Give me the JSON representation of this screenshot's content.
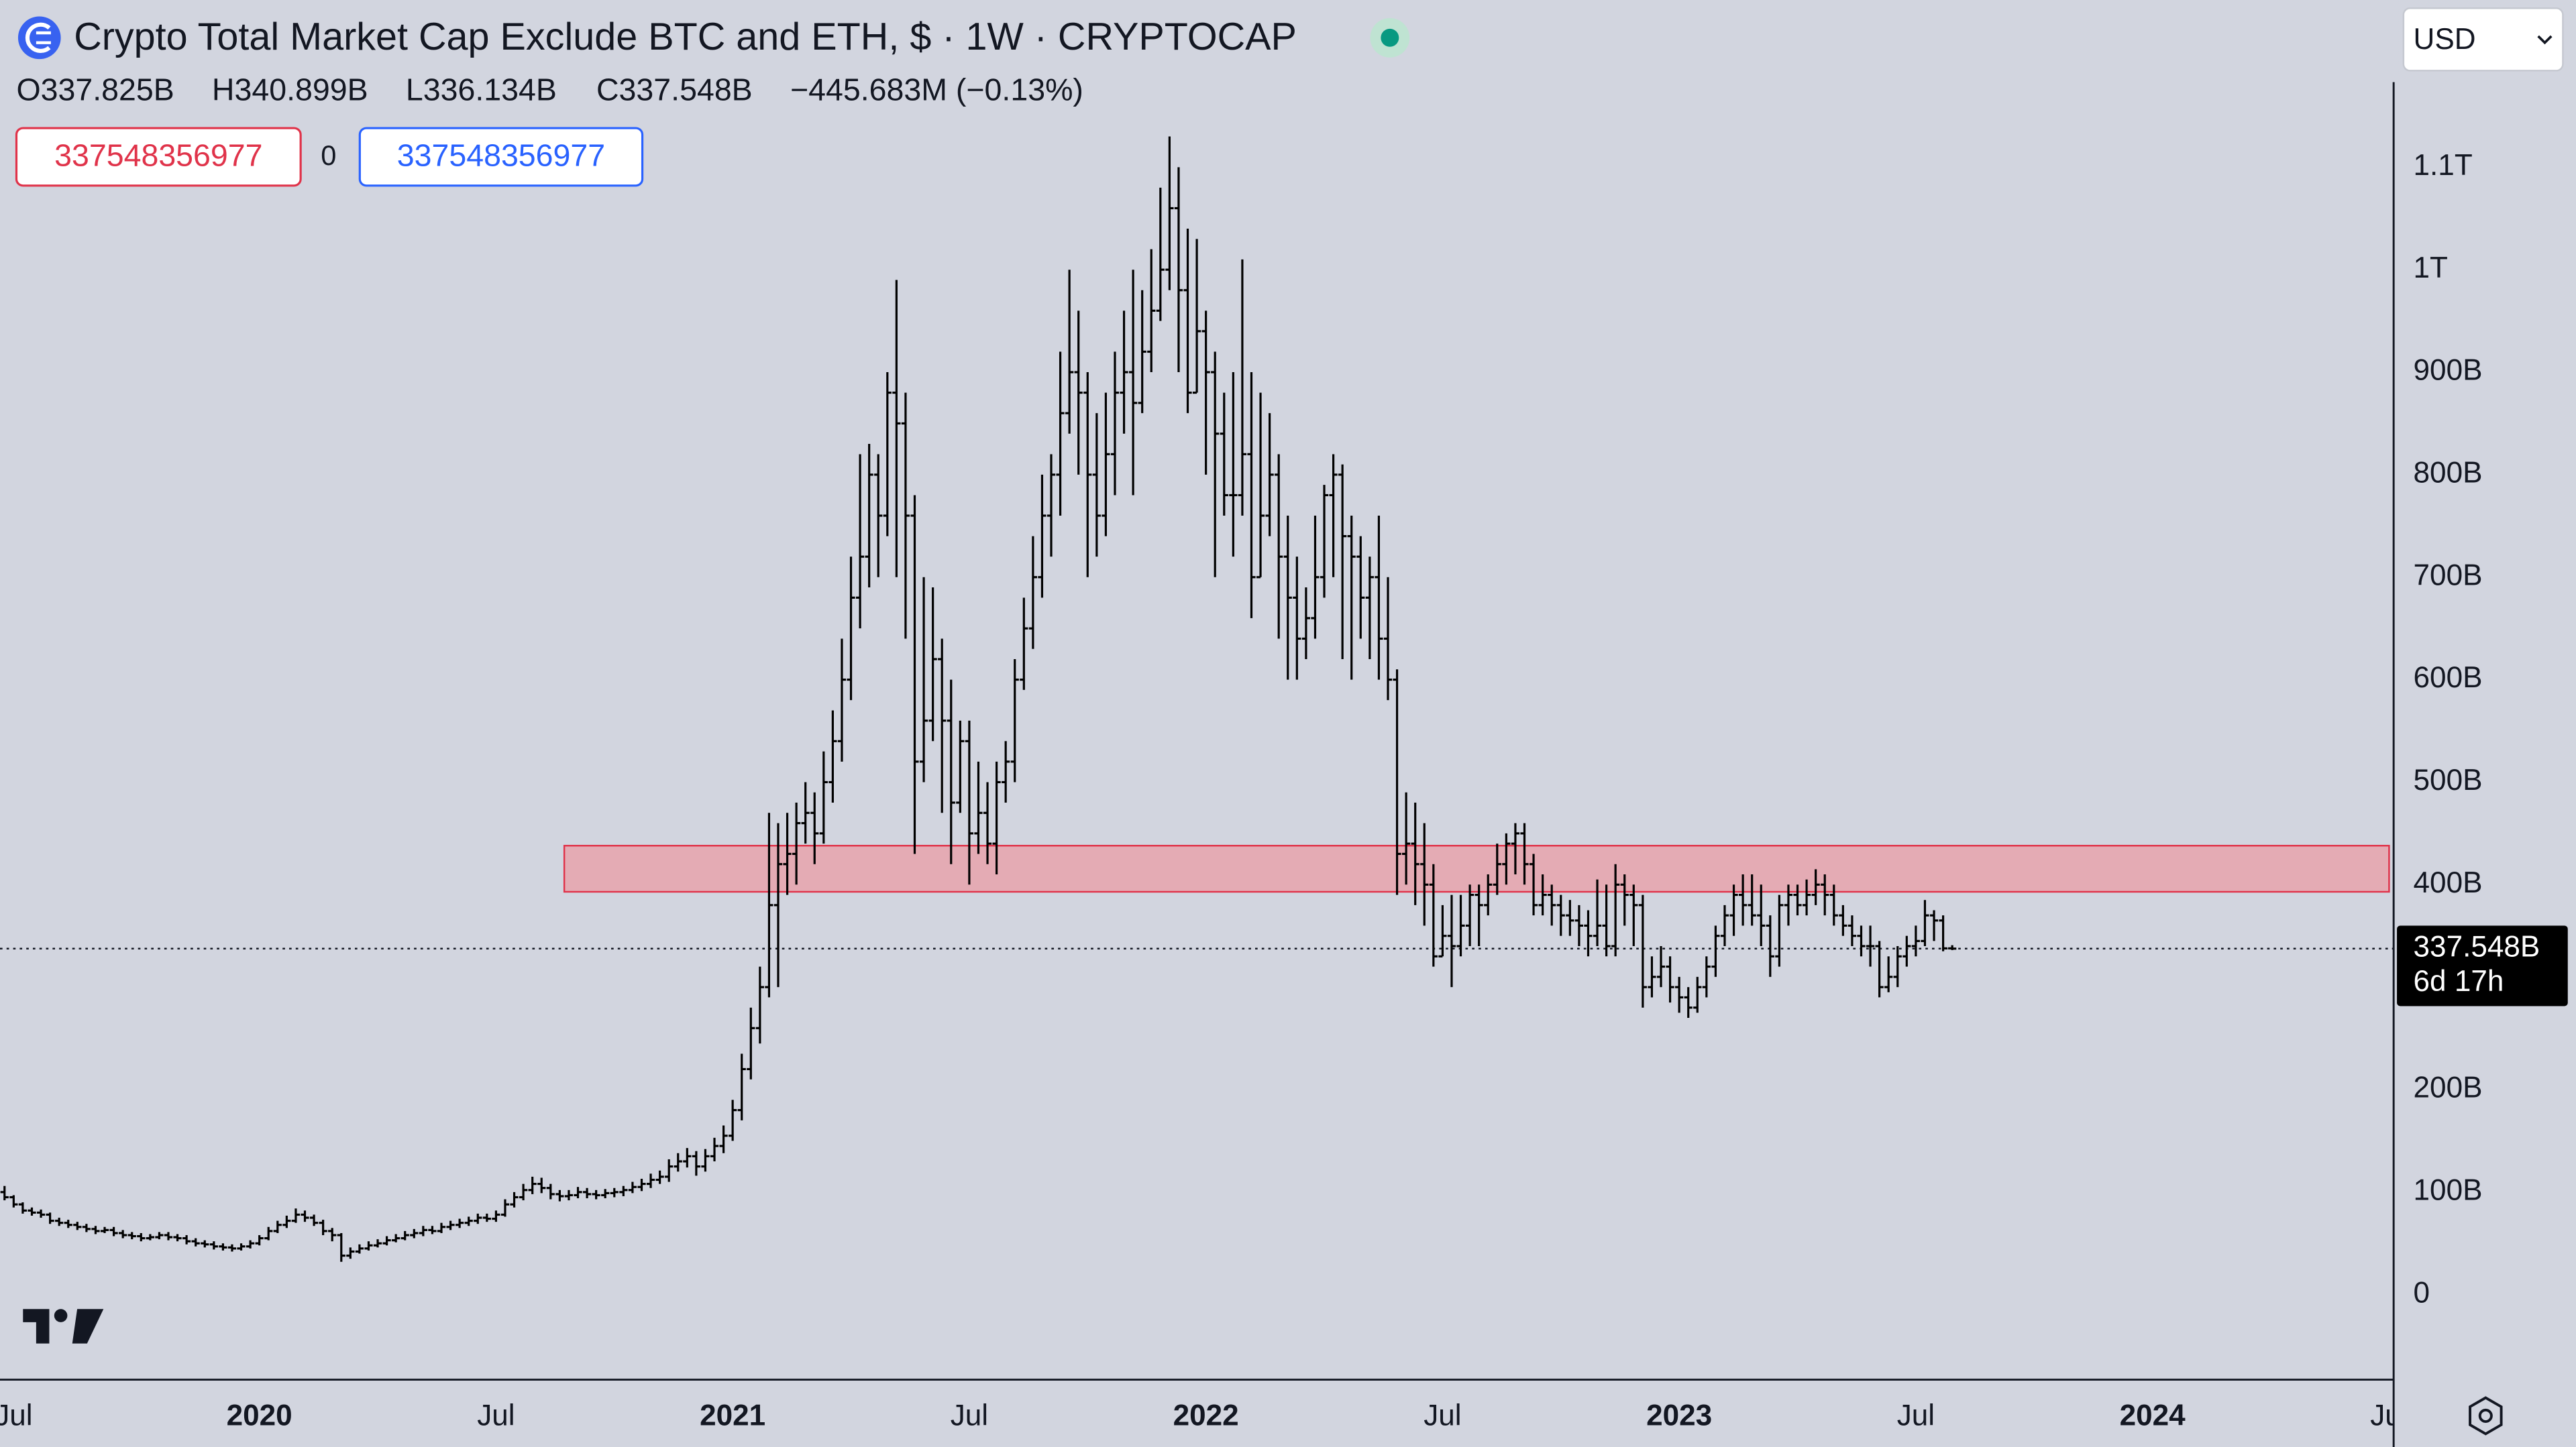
{
  "chart_data": {
    "type": "ohlc",
    "title": "Crypto Total Market Cap Exclude BTC and ETH, $ · 1W · CRYPTOCAP",
    "header": [
      "O337.825B",
      "H340.899B",
      "L336.134B",
      "C337.548B",
      "−445.683M (−0.13%)"
    ],
    "inputs": [
      "337548356977",
      "0",
      "337548356977"
    ],
    "currency": "USD",
    "color": "#000000",
    "grid": false,
    "categories": [
      null,
      null,
      null,
      null,
      null,
      null,
      null,
      null,
      null,
      null,
      null,
      null,
      null,
      null,
      null,
      null,
      null,
      null,
      null,
      null,
      null,
      null,
      null,
      null,
      null,
      null,
      null,
      null,
      null,
      null,
      null,
      null,
      null,
      null,
      null,
      null,
      null,
      null,
      null,
      null,
      null,
      null,
      null,
      null,
      null,
      null,
      null,
      null,
      null,
      null,
      null,
      null,
      null,
      null,
      null,
      null,
      null,
      null,
      null,
      null,
      null,
      null,
      null,
      null,
      null,
      null,
      null,
      null,
      null,
      null,
      null,
      null,
      null,
      null,
      null,
      null,
      null,
      null,
      null,
      null,
      null,
      null,
      null,
      null,
      null,
      null,
      null,
      null,
      null,
      null,
      null,
      null,
      null,
      null,
      null,
      null,
      null,
      null,
      null,
      null,
      null,
      null,
      null,
      null,
      null,
      null,
      null,
      null,
      null,
      null,
      null,
      null,
      null,
      null,
      null,
      null,
      null,
      null,
      null,
      null,
      null,
      null,
      null,
      null,
      null,
      null,
      null,
      null,
      null,
      null,
      null,
      null,
      null,
      null,
      null,
      null,
      null,
      null,
      null,
      null,
      null,
      null,
      null,
      null,
      null,
      null,
      null,
      null,
      null,
      null,
      null,
      null,
      null,
      null,
      null,
      null,
      null,
      null,
      null,
      null,
      null,
      null,
      null,
      null,
      null,
      null,
      null,
      null,
      null,
      null,
      null,
      null,
      null,
      null,
      null,
      null,
      null,
      null,
      null,
      null,
      null,
      null,
      null,
      null,
      null,
      null,
      null,
      null,
      null,
      null,
      null,
      null,
      null,
      null,
      null,
      null,
      null,
      null,
      null,
      null,
      null,
      null,
      null,
      null,
      null,
      null,
      null,
      null,
      null,
      null,
      null,
      null,
      null,
      null,
      null
    ],
    "open": [
      100,
      95,
      88,
      82,
      80,
      78,
      72,
      70,
      68,
      66,
      64,
      62,
      63,
      60,
      58,
      57,
      55,
      56,
      58,
      56,
      55,
      52,
      50,
      49,
      47,
      46,
      45,
      47,
      50,
      55,
      62,
      68,
      72,
      78,
      75,
      70,
      62,
      58,
      38,
      42,
      45,
      48,
      50,
      53,
      55,
      58,
      60,
      63,
      62,
      66,
      68,
      70,
      72,
      75,
      74,
      78,
      88,
      95,
      102,
      108,
      104,
      98,
      96,
      97,
      100,
      98,
      97,
      99,
      100,
      102,
      105,
      108,
      112,
      115,
      125,
      130,
      135,
      125,
      135,
      145,
      155,
      180,
      220,
      260,
      300,
      380,
      420,
      430,
      460,
      470,
      450,
      500,
      540,
      600,
      680,
      720,
      800,
      760,
      880,
      850,
      760,
      520,
      560,
      620,
      560,
      480,
      540,
      450,
      470,
      440,
      500,
      520,
      600,
      650,
      700,
      760,
      800,
      860,
      900,
      880,
      800,
      760,
      820,
      880,
      900,
      870,
      920,
      960,
      1000,
      1060,
      980,
      880,
      940,
      900,
      840,
      780,
      780,
      820,
      700,
      760,
      800,
      720,
      680,
      640,
      660,
      700,
      780,
      800,
      740,
      720,
      680,
      700,
      640,
      600,
      430,
      440,
      420,
      400,
      330,
      350,
      340,
      360,
      390,
      380,
      400,
      420,
      440,
      450,
      420,
      380,
      390,
      380,
      370,
      365,
      360,
      350,
      360,
      340,
      400,
      390,
      380,
      300,
      310,
      320,
      300,
      290,
      280,
      300,
      320,
      350,
      370,
      390,
      380,
      370,
      360,
      330,
      380,
      390,
      380,
      390,
      400,
      390,
      370,
      360,
      350,
      340,
      340,
      300,
      310,
      330,
      340,
      345,
      370,
      365,
      337.825
    ],
    "high": [
      106,
      97,
      90,
      85,
      83,
      80,
      75,
      73,
      71,
      69,
      67,
      66,
      66,
      63,
      61,
      60,
      59,
      61,
      61,
      59,
      58,
      55,
      53,
      52,
      50,
      49,
      50,
      53,
      58,
      66,
      72,
      77,
      84,
      82,
      78,
      73,
      65,
      60,
      46,
      49,
      52,
      54,
      57,
      59,
      62,
      64,
      67,
      67,
      70,
      72,
      74,
      76,
      79,
      79,
      82,
      93,
      100,
      108,
      115,
      114,
      108,
      102,
      102,
      105,
      104,
      102,
      103,
      104,
      106,
      110,
      113,
      118,
      121,
      132,
      138,
      143,
      140,
      142,
      153,
      165,
      190,
      235,
      280,
      320,
      470,
      460,
      470,
      480,
      500,
      490,
      530,
      570,
      640,
      720,
      820,
      830,
      820,
      900,
      990,
      880,
      780,
      700,
      690,
      640,
      600,
      560,
      560,
      520,
      500,
      520,
      540,
      620,
      680,
      740,
      800,
      820,
      920,
      1000,
      960,
      900,
      860,
      880,
      920,
      960,
      1000,
      980,
      1020,
      1080,
      1130,
      1100,
      1040,
      1030,
      960,
      920,
      880,
      900,
      1010,
      900,
      880,
      860,
      820,
      760,
      720,
      690,
      760,
      790,
      820,
      810,
      760,
      740,
      720,
      760,
      700,
      610,
      490,
      480,
      460,
      420,
      380,
      390,
      390,
      400,
      400,
      410,
      440,
      450,
      460,
      460,
      430,
      410,
      400,
      390,
      385,
      380,
      375,
      405,
      400,
      420,
      410,
      400,
      390,
      330,
      340,
      330,
      310,
      300,
      310,
      330,
      360,
      380,
      400,
      410,
      410,
      400,
      370,
      390,
      400,
      400,
      405,
      415,
      410,
      400,
      380,
      370,
      360,
      360,
      345,
      330,
      340,
      350,
      360,
      385,
      375,
      370,
      340.899
    ],
    "low": [
      92,
      85,
      79,
      77,
      75,
      69,
      67,
      65,
      63,
      61,
      59,
      60,
      57,
      55,
      54,
      52,
      53,
      54,
      53,
      52,
      49,
      47,
      46,
      44,
      43,
      42,
      43,
      45,
      48,
      53,
      60,
      65,
      70,
      71,
      67,
      58,
      52,
      32,
      35,
      40,
      43,
      46,
      48,
      51,
      53,
      55,
      57,
      59,
      60,
      63,
      65,
      67,
      69,
      71,
      71,
      76,
      85,
      92,
      98,
      99,
      93,
      91,
      92,
      94,
      94,
      93,
      94,
      95,
      96,
      99,
      101,
      104,
      108,
      110,
      120,
      124,
      116,
      120,
      130,
      138,
      150,
      170,
      210,
      245,
      290,
      300,
      390,
      400,
      440,
      420,
      440,
      480,
      520,
      580,
      650,
      690,
      700,
      740,
      700,
      640,
      430,
      500,
      540,
      470,
      420,
      470,
      400,
      430,
      420,
      410,
      480,
      500,
      590,
      630,
      680,
      720,
      760,
      840,
      800,
      700,
      720,
      740,
      780,
      840,
      780,
      860,
      900,
      950,
      980,
      900,
      860,
      880,
      800,
      700,
      760,
      720,
      760,
      660,
      700,
      740,
      640,
      600,
      600,
      620,
      640,
      680,
      700,
      620,
      600,
      640,
      620,
      600,
      580,
      390,
      400,
      380,
      360,
      320,
      330,
      300,
      330,
      340,
      340,
      370,
      390,
      400,
      410,
      400,
      370,
      370,
      360,
      350,
      350,
      340,
      330,
      340,
      330,
      330,
      360,
      340,
      280,
      290,
      300,
      285,
      275,
      270,
      275,
      290,
      310,
      340,
      350,
      360,
      360,
      340,
      310,
      320,
      360,
      370,
      370,
      380,
      370,
      360,
      350,
      340,
      330,
      320,
      290,
      295,
      300,
      320,
      330,
      340,
      345,
      335,
      336.134
    ],
    "close": [
      95,
      88,
      82,
      80,
      78,
      72,
      70,
      68,
      66,
      64,
      62,
      63,
      60,
      58,
      57,
      55,
      56,
      58,
      56,
      55,
      52,
      50,
      49,
      47,
      46,
      45,
      47,
      50,
      55,
      62,
      68,
      72,
      78,
      75,
      70,
      62,
      58,
      38,
      42,
      45,
      48,
      50,
      53,
      55,
      58,
      60,
      63,
      62,
      66,
      68,
      70,
      72,
      75,
      74,
      78,
      88,
      95,
      102,
      108,
      104,
      98,
      96,
      97,
      100,
      98,
      97,
      99,
      100,
      102,
      105,
      108,
      112,
      115,
      125,
      130,
      135,
      125,
      135,
      145,
      155,
      180,
      220,
      260,
      300,
      380,
      420,
      430,
      460,
      470,
      450,
      500,
      540,
      600,
      680,
      720,
      800,
      760,
      880,
      850,
      760,
      520,
      560,
      620,
      560,
      480,
      540,
      450,
      470,
      440,
      500,
      520,
      600,
      650,
      700,
      760,
      800,
      860,
      900,
      880,
      800,
      760,
      820,
      880,
      900,
      870,
      920,
      960,
      1000,
      1060,
      980,
      880,
      940,
      900,
      840,
      780,
      780,
      820,
      700,
      760,
      800,
      720,
      680,
      640,
      660,
      700,
      780,
      800,
      740,
      720,
      680,
      700,
      640,
      600,
      430,
      440,
      420,
      400,
      330,
      350,
      340,
      360,
      390,
      380,
      400,
      420,
      440,
      450,
      420,
      380,
      390,
      380,
      370,
      365,
      360,
      350,
      360,
      340,
      400,
      390,
      380,
      300,
      310,
      320,
      300,
      290,
      280,
      300,
      320,
      350,
      370,
      390,
      380,
      370,
      360,
      330,
      380,
      390,
      380,
      390,
      400,
      390,
      370,
      360,
      350,
      340,
      340,
      300,
      310,
      330,
      340,
      345,
      370,
      365,
      337.825,
      337.548
    ],
    "xlim": [
      -0.5,
      262.5
    ],
    "xticks": [
      {
        "value": 1,
        "label": "Jul"
      },
      {
        "value": 28,
        "label": "2020"
      },
      {
        "value": 54,
        "label": "Jul"
      },
      {
        "value": 80,
        "label": "2021"
      },
      {
        "value": 106,
        "label": "Jul"
      },
      {
        "value": 132,
        "label": "2022"
      },
      {
        "value": 158,
        "label": "Jul"
      },
      {
        "value": 184,
        "label": "2023"
      },
      {
        "value": 210,
        "label": "Jul"
      },
      {
        "value": 236,
        "label": "2024"
      },
      {
        "value": 262,
        "label": "Jul"
      }
    ],
    "ylim": [
      -83,
      1183
    ],
    "yticks": [
      0,
      {
        "value": 100,
        "label": "100B"
      },
      {
        "value": 200,
        "label": "200B"
      },
      {
        "value": 400,
        "label": "400B"
      },
      {
        "value": 500,
        "label": "500B"
      },
      {
        "value": 600,
        "label": "600B"
      },
      {
        "value": 700,
        "label": "700B"
      },
      {
        "value": 800,
        "label": "800B"
      },
      {
        "value": 900,
        "label": "900B"
      },
      {
        "value": 1000,
        "label": "1T"
      },
      {
        "value": 1100,
        "label": "1.1T"
      }
    ],
    "zone": {
      "low": 393,
      "high": 438,
      "start": 62,
      "color": "#e8a3ad"
    },
    "last_price": {
      "value": 337.548,
      "label": "337.548B",
      "countdown": "6d 17h"
    }
  }
}
